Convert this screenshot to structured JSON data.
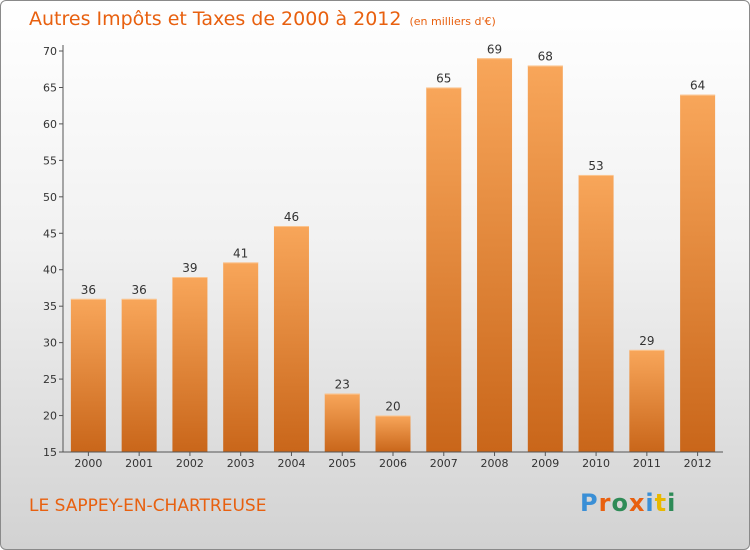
{
  "title": "Autres Impôts et Taxes de 2000 à 2012",
  "subtitle": "(en milliers d'€)",
  "location": "LE SAPPEY-EN-CHARTREUSE",
  "logo": {
    "text": "Proxiti",
    "colors": [
      "#3a8fd6",
      "#e8600f",
      "#2e8b57",
      "#e8600f",
      "#3a8fd6",
      "#e8b800",
      "#2e8b57"
    ]
  },
  "colors": {
    "bar_light": "#f8a65a",
    "bar_dark": "#c9661a",
    "accent": "#e8600f"
  },
  "chart_data": {
    "type": "bar",
    "categories": [
      "2000",
      "2001",
      "2002",
      "2003",
      "2004",
      "2005",
      "2006",
      "2007",
      "2008",
      "2009",
      "2010",
      "2011",
      "2012"
    ],
    "values": [
      36,
      36,
      39,
      41,
      46,
      23,
      20,
      65,
      69,
      68,
      53,
      29,
      64
    ],
    "ylim": [
      15,
      70
    ],
    "yticks": [
      15,
      20,
      25,
      30,
      35,
      40,
      45,
      50,
      55,
      60,
      65,
      70
    ],
    "grid": false,
    "legend": "none"
  }
}
